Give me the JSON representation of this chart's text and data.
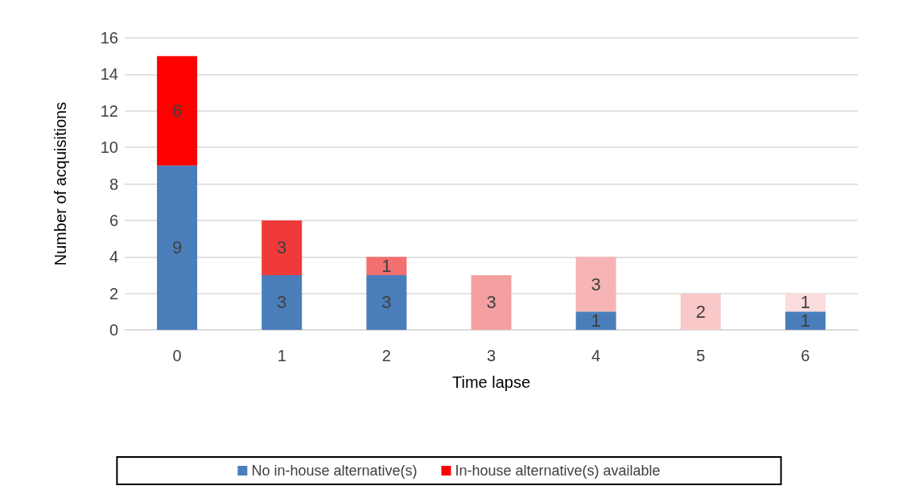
{
  "chart_data": {
    "type": "bar",
    "stacked": true,
    "xlabel": "Time lapse",
    "ylabel": "Number of acquisitions",
    "categories": [
      "0",
      "1",
      "2",
      "3",
      "4",
      "5",
      "6"
    ],
    "series": [
      {
        "name": "No in-house alternative(s)",
        "color": "#4a7ebb",
        "values": [
          9,
          3,
          3,
          0,
          1,
          0,
          1
        ],
        "value_labels": [
          "9",
          "3",
          "3",
          null,
          "1",
          null,
          "1"
        ]
      },
      {
        "name": "In-house alternative(s) available",
        "color": "#ff0000",
        "colors": [
          "#ff0000",
          "#f03a3a",
          "#f27070",
          "#f4a0a0",
          "#f7b4b4",
          "#f9c8c8",
          "#fbdcdc"
        ],
        "values": [
          6,
          3,
          1,
          3,
          3,
          2,
          1
        ],
        "value_labels": [
          "6",
          "3",
          "1",
          "3",
          "3",
          "2",
          "1"
        ]
      }
    ],
    "ylim": [
      0,
      16
    ],
    "yticks": [
      0,
      2,
      4,
      6,
      8,
      10,
      12,
      14,
      16
    ],
    "grid": "y",
    "legend": "bottom"
  }
}
